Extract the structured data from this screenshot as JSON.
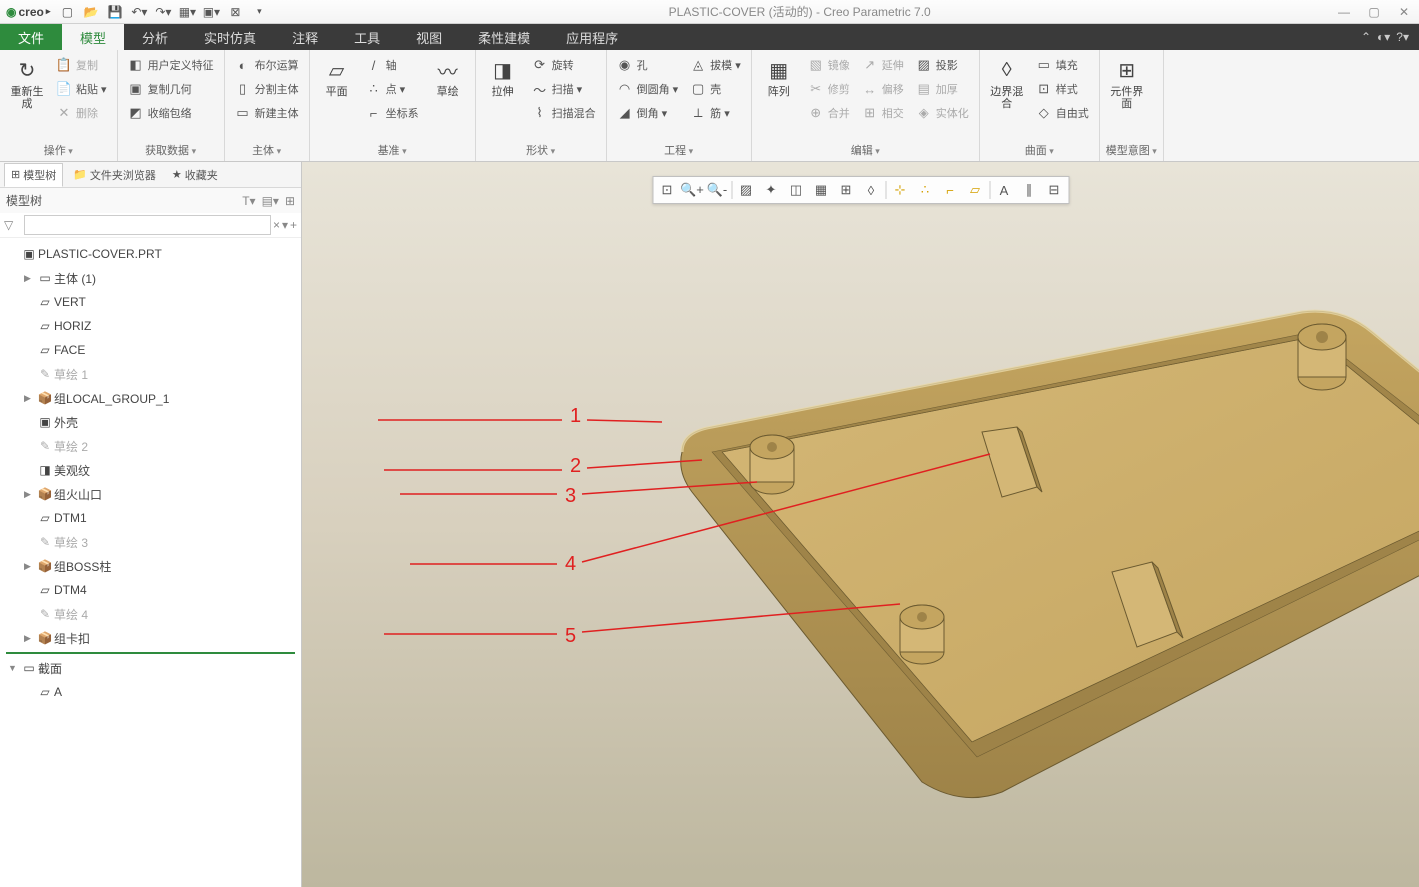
{
  "titlebar": {
    "logo": "creo",
    "title": "PLASTIC-COVER (活动的) - Creo Parametric 7.0"
  },
  "tabs": {
    "file": "文件",
    "items": [
      "模型",
      "分析",
      "实时仿真",
      "注释",
      "工具",
      "视图",
      "柔性建模",
      "应用程序"
    ],
    "active": 0
  },
  "ribbon": {
    "groups": [
      {
        "label": "操作",
        "big": [
          {
            "icon": "↻",
            "label": "重新生成"
          }
        ],
        "small": [
          [
            "📋",
            "复制",
            true
          ],
          [
            "📄",
            "粘贴 ▾",
            false
          ],
          [
            "✕",
            "删除",
            true
          ]
        ]
      },
      {
        "label": "获取数据",
        "small": [
          [
            "◧",
            "用户定义特征",
            false
          ],
          [
            "▣",
            "复制几何",
            false
          ],
          [
            "◩",
            "收缩包络",
            false
          ]
        ]
      },
      {
        "label": "主体",
        "small": [
          [
            "◐",
            "布尔运算",
            false
          ],
          [
            "▯",
            "分割主体",
            false
          ],
          [
            "▭",
            "新建主体",
            false
          ]
        ]
      },
      {
        "label": "基准",
        "big": [
          {
            "icon": "▱",
            "label": "平面"
          }
        ],
        "small": [
          [
            "/",
            "轴",
            false
          ],
          [
            "∴",
            "点 ▾",
            false
          ],
          [
            "⌐",
            "坐标系",
            false
          ]
        ],
        "big2": [
          {
            "icon": "〰",
            "label": "草绘"
          }
        ]
      },
      {
        "label": "形状",
        "big": [
          {
            "icon": "◨",
            "label": "拉伸"
          }
        ],
        "small": [
          [
            "⟳",
            "旋转",
            false
          ],
          [
            "〜",
            "扫描 ▾",
            false
          ],
          [
            "⌇",
            "扫描混合",
            false
          ]
        ]
      },
      {
        "label": "工程",
        "small": [
          [
            "◉",
            "孔",
            false
          ],
          [
            "◠",
            "倒圆角 ▾",
            false
          ],
          [
            "◢",
            "倒角 ▾",
            false
          ]
        ],
        "small2": [
          [
            "◬",
            "拔模 ▾",
            false
          ],
          [
            "▢",
            "壳",
            false
          ],
          [
            "⟂",
            "筋 ▾",
            false
          ]
        ]
      },
      {
        "label": "编辑",
        "big": [
          {
            "icon": "▦",
            "label": "阵列"
          }
        ],
        "small": [
          [
            "▧",
            "镜像",
            true
          ],
          [
            "✂",
            "修剪",
            true
          ],
          [
            "⊕",
            "合并",
            true
          ]
        ],
        "small2": [
          [
            "↗",
            "延伸",
            true
          ],
          [
            "↔",
            "偏移",
            true
          ],
          [
            "⊞",
            "相交",
            true
          ]
        ],
        "small3": [
          [
            "▨",
            "投影",
            false
          ],
          [
            "▤",
            "加厚",
            true
          ],
          [
            "◈",
            "实体化",
            true
          ]
        ]
      },
      {
        "label": "曲面",
        "big": [
          {
            "icon": "◊",
            "label": "边界混合"
          }
        ],
        "small": [
          [
            "▭",
            "填充",
            false
          ],
          [
            "⊡",
            "样式",
            false
          ],
          [
            "◇",
            "自由式",
            false
          ]
        ]
      },
      {
        "label": "模型意图",
        "big": [
          {
            "icon": "⊞",
            "label": "元件界面"
          }
        ]
      }
    ]
  },
  "sidebar": {
    "tabs": [
      {
        "icon": "⊞",
        "label": "模型树",
        "active": true
      },
      {
        "icon": "📁",
        "label": "文件夹浏览器"
      },
      {
        "icon": "★",
        "label": "收藏夹"
      }
    ],
    "header": "模型树",
    "search_placeholder": "",
    "root": "PLASTIC-COVER.PRT",
    "nodes": [
      {
        "exp": "▶",
        "icon": "▭",
        "label": "主体 (1)",
        "lvl": 1
      },
      {
        "exp": "",
        "icon": "▱",
        "label": "VERT",
        "lvl": 1
      },
      {
        "exp": "",
        "icon": "▱",
        "label": "HORIZ",
        "lvl": 1
      },
      {
        "exp": "",
        "icon": "▱",
        "label": "FACE",
        "lvl": 1
      },
      {
        "exp": "",
        "icon": "✎",
        "label": "草绘 1",
        "lvl": 1,
        "dim": true
      },
      {
        "exp": "▶",
        "icon": "📦",
        "label": "组LOCAL_GROUP_1",
        "lvl": 1
      },
      {
        "exp": "",
        "icon": "▣",
        "label": "外壳",
        "lvl": 1
      },
      {
        "exp": "",
        "icon": "✎",
        "label": "草绘 2",
        "lvl": 1,
        "dim": true
      },
      {
        "exp": "",
        "icon": "◨",
        "label": "美观纹",
        "lvl": 1
      },
      {
        "exp": "▶",
        "icon": "📦",
        "label": "组火山口",
        "lvl": 1
      },
      {
        "exp": "",
        "icon": "▱",
        "label": "DTM1",
        "lvl": 1
      },
      {
        "exp": "",
        "icon": "✎",
        "label": "草绘 3",
        "lvl": 1,
        "dim": true
      },
      {
        "exp": "▶",
        "icon": "📦",
        "label": "组BOSS柱",
        "lvl": 1
      },
      {
        "exp": "",
        "icon": "▱",
        "label": "DTM4",
        "lvl": 1
      },
      {
        "exp": "",
        "icon": "✎",
        "label": "草绘 4",
        "lvl": 1,
        "dim": true
      },
      {
        "exp": "▶",
        "icon": "📦",
        "label": "组卡扣",
        "lvl": 1
      }
    ],
    "section_label": "截面",
    "section_item": "A"
  },
  "annotations": [
    "1",
    "2",
    "3",
    "4",
    "5"
  ],
  "model_colors": {
    "face_light": "#d4b776",
    "face_mid": "#c4a560",
    "face_dark": "#9e8348",
    "edge": "#6b5a30"
  }
}
